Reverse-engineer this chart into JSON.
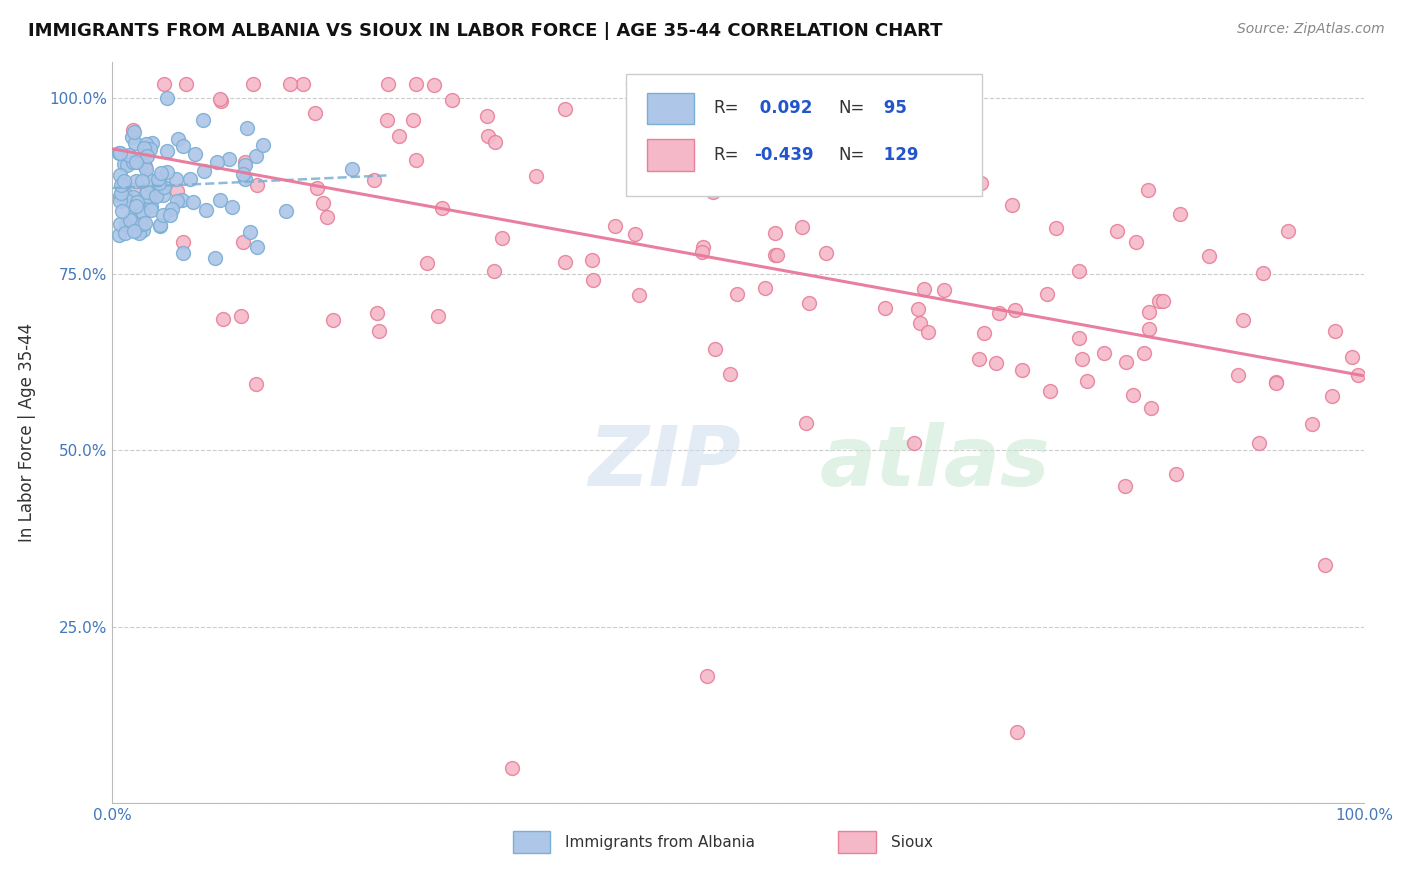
{
  "title": "IMMIGRANTS FROM ALBANIA VS SIOUX IN LABOR FORCE | AGE 35-44 CORRELATION CHART",
  "source": "Source: ZipAtlas.com",
  "ylabel": "In Labor Force | Age 35-44",
  "albania_R": 0.092,
  "albania_N": 95,
  "sioux_R": -0.439,
  "sioux_N": 129,
  "albania_color": "#aec6e8",
  "albania_edge_color": "#7aafd4",
  "sioux_color": "#f4b8c8",
  "sioux_edge_color": "#e8809a",
  "trend_albania_color": "#7aafd4",
  "trend_sioux_color": "#e8789a",
  "background_color": "#ffffff",
  "grid_color": "#cccccc",
  "marker_size": 100
}
